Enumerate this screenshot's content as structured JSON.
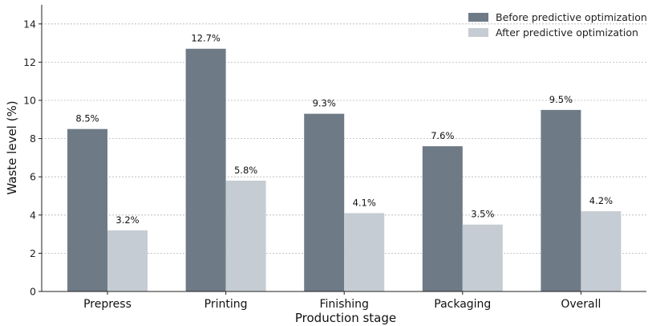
{
  "chart_data": {
    "type": "bar",
    "title": "",
    "xlabel": "Production stage",
    "ylabel": "Waste level (%)",
    "categories": [
      "Prepress",
      "Printing",
      "Finishing",
      "Packaging",
      "Overall"
    ],
    "series": [
      {
        "name": "Before predictive optimization",
        "values": [
          8.5,
          12.7,
          9.3,
          7.6,
          9.5
        ],
        "labels": [
          "8.5%",
          "12.7%",
          "9.3%",
          "7.6%",
          "9.5%"
        ],
        "color": "#6e7b87"
      },
      {
        "name": "After predictive optimization",
        "values": [
          3.2,
          5.8,
          4.1,
          3.5,
          4.2
        ],
        "labels": [
          "3.2%",
          "5.8%",
          "4.1%",
          "3.5%",
          "4.2%"
        ],
        "color": "#c6ccd3"
      }
    ],
    "ylim": [
      0,
      15
    ],
    "yticks": [
      "0",
      "2",
      "4",
      "6",
      "8",
      "10",
      "12",
      "14"
    ],
    "grid": "horizontal",
    "legend": "top-right"
  }
}
